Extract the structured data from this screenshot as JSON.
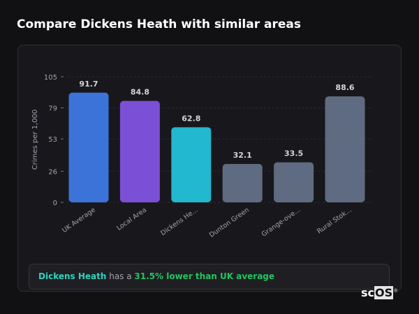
{
  "title": "Compare Dickens Heath with similar areas",
  "chart_data": {
    "type": "bar",
    "ylabel": "Crimes per 1,000",
    "ylim": [
      0,
      105
    ],
    "yticks": [
      0,
      26,
      53,
      79,
      105
    ],
    "grid": true,
    "categories": [
      "UK Average",
      "Local Area",
      "Dickens He...",
      "Dunton Green",
      "Grange-ove...",
      "Rural Stok..."
    ],
    "values": [
      91.7,
      84.8,
      62.8,
      32.1,
      33.5,
      88.6
    ],
    "value_labels": [
      "91.7",
      "84.8",
      "62.8",
      "32.1",
      "33.5",
      "88.6"
    ],
    "colors": [
      "#3b73d9",
      "#7b4fd6",
      "#22b8cf",
      "#5f6b80",
      "#5f6b80",
      "#5f6b80"
    ]
  },
  "summary": {
    "area": "Dickens Heath",
    "middle": " has a ",
    "comparison": "31.5% lower than UK average"
  },
  "logo": {
    "text1": "sc",
    "text2": "OS",
    "mark": "®"
  }
}
